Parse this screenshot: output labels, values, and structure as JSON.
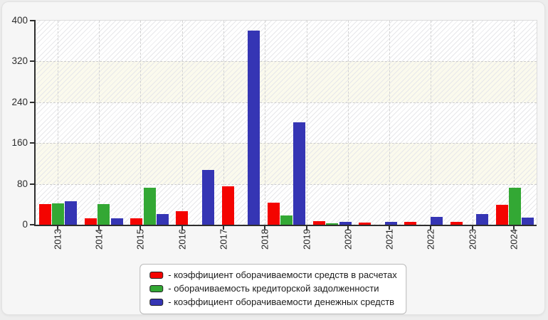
{
  "chart_data": {
    "type": "bar",
    "title": "",
    "x_tick_labels": [
      "2013",
      "2014",
      "2015",
      "2016",
      "2017",
      "2018",
      "2019",
      "2020",
      "2021",
      "2022",
      "2023",
      "2024"
    ],
    "y_ticks": [
      0,
      80,
      160,
      240,
      320,
      400
    ],
    "y_tick_labels": [
      "0",
      "80",
      "160",
      "240",
      "320",
      "400"
    ],
    "ylim": [
      0,
      400
    ],
    "grid": "dashed horizontal and vertical gridlines, alternating white and cream hatched bands",
    "legend_position": "bottom-center",
    "bar_group_count": 11,
    "series": [
      {
        "name": "коэффициент оборачиваемости средств в расчетах",
        "color": "#f40400",
        "values": [
          40,
          13,
          13,
          26,
          75,
          43,
          7,
          4,
          5,
          5,
          39
        ]
      },
      {
        "name": "оборачиваемость кредиторской задолженности",
        "color": "#33a834",
        "values": [
          42,
          41,
          72,
          0,
          0,
          18,
          3,
          0,
          0,
          0,
          73
        ]
      },
      {
        "name": "коэффициент оборачиваемости денежных средств",
        "color": "#3535b4",
        "values": [
          46,
          13,
          21,
          107,
          381,
          200,
          5,
          5,
          16,
          21,
          14
        ]
      }
    ],
    "legend": [
      {
        "label": "- коэффициент оборачиваемости средств в расчетах"
      },
      {
        "label": "- оборачиваемость кредиторской задолженности"
      },
      {
        "label": "- коэффициент оборачиваемости денежных средств"
      }
    ],
    "colors": {
      "page_background": "#ededed",
      "panel_background": "#f6f6f6",
      "band_cream": "#fbfaed",
      "axis": "#2e2e2e",
      "gridline": "#cccccc"
    }
  }
}
